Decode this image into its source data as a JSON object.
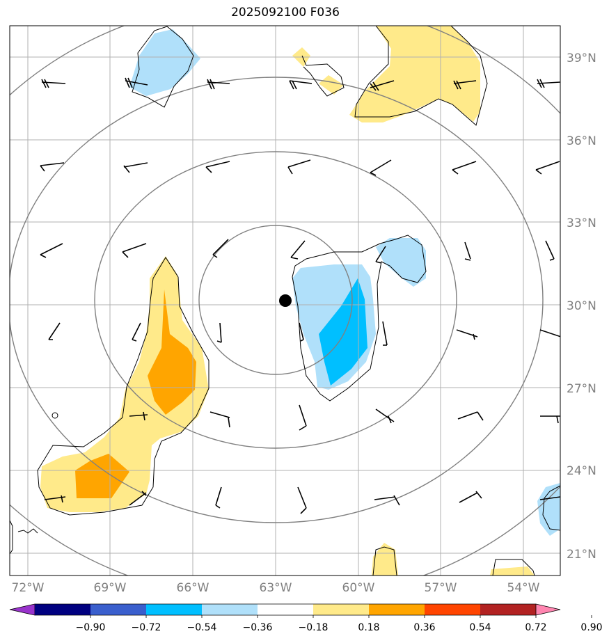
{
  "title": "2025092100 F036",
  "map": {
    "lon_range": [
      -72.5,
      -52.5
    ],
    "lat_range": [
      20.5,
      40.5
    ],
    "lat_ticks": [
      "21°N",
      "24°N",
      "27°N",
      "30°N",
      "33°N",
      "36°N",
      "39°N"
    ],
    "lon_ticks": [
      "72°W",
      "69°W",
      "66°W",
      "63°W",
      "60°W",
      "57°W",
      "54°W"
    ],
    "center_marker": {
      "lon": -62.6,
      "lat": 30.2
    },
    "range_rings": 4,
    "grid": true
  },
  "colorbar": {
    "levels": [
      "−0.90",
      "−0.72",
      "−0.54",
      "−0.36",
      "−0.18",
      "0.18",
      "0.36",
      "0.54",
      "0.72",
      "0.90"
    ],
    "colors": [
      "#9933cc",
      "#000080",
      "#3a5fcd",
      "#00bfff",
      "#b0e0fa",
      "#ffffff",
      "#ffea8a",
      "#ffa500",
      "#ff4500",
      "#b22222",
      "#ff85b0"
    ]
  },
  "colors": {
    "grid": "#b0b0b0",
    "ring": "#808080",
    "coast": "#000000"
  }
}
